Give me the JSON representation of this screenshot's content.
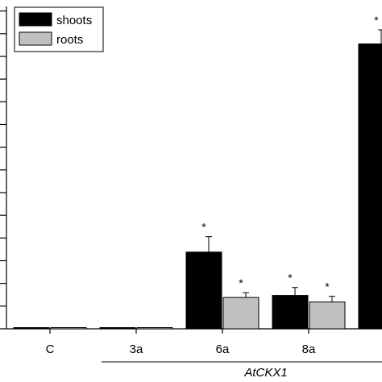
{
  "chart_data": {
    "type": "bar",
    "categories": [
      "C",
      "3a",
      "6a",
      "8a",
      ""
    ],
    "series": [
      {
        "name": "shoots",
        "color": "#000000",
        "values": [
          0.0,
          0.0,
          3.38,
          1.47,
          12.55
        ],
        "errors": [
          0.0,
          0.0,
          0.68,
          0.35,
          0.62
        ],
        "significant": [
          false,
          false,
          true,
          true,
          true
        ]
      },
      {
        "name": "roots",
        "color": "#c0c0c0",
        "values": [
          0.0,
          0.0,
          1.38,
          1.18,
          null
        ],
        "errors": [
          0.0,
          0.0,
          0.21,
          0.25,
          null
        ],
        "significant": [
          false,
          false,
          true,
          true,
          false
        ]
      }
    ],
    "significance_marker": "*",
    "group_label": "AtCKX1",
    "ylim": [
      0,
      14.2
    ],
    "legend_position": "top-left",
    "grid": false
  }
}
